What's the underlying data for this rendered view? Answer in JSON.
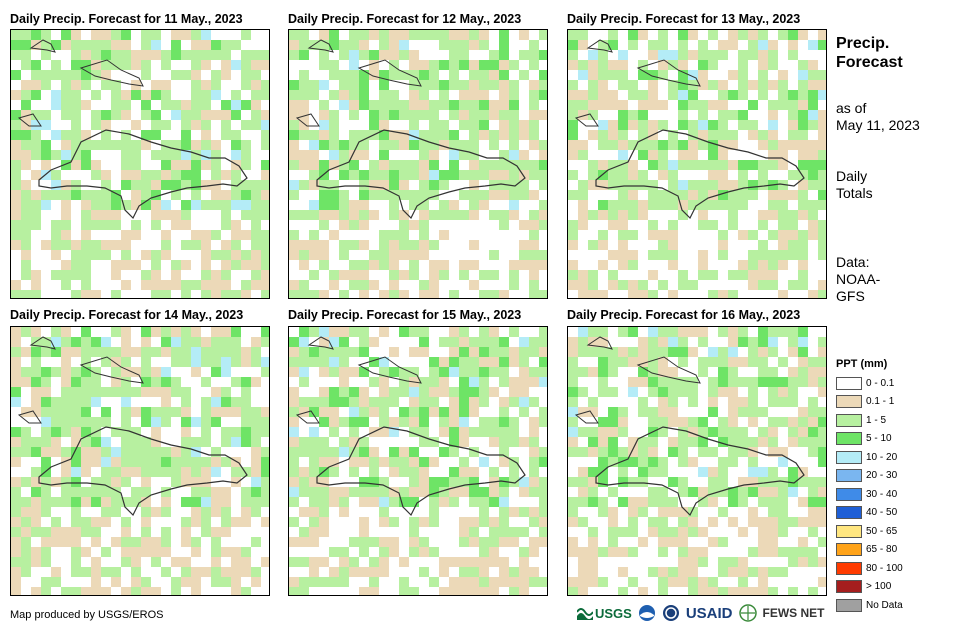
{
  "panels": [
    {
      "title": "Daily Precip. Forecast for 11 May., 2023"
    },
    {
      "title": "Daily Precip. Forecast for 12 May., 2023"
    },
    {
      "title": "Daily Precip. Forecast for 13 May., 2023"
    },
    {
      "title": "Daily Precip. Forecast for 14 May., 2023"
    },
    {
      "title": "Daily Precip. Forecast for 15 May., 2023"
    },
    {
      "title": "Daily Precip. Forecast for 16 May., 2023"
    }
  ],
  "sidebar": {
    "title_line1": "Precip.",
    "title_line2": "Forecast",
    "asof_line1": "as of",
    "asof_line2": "May 11, 2023",
    "totals_line1": "Daily",
    "totals_line2": "Totals",
    "data_line1": "Data:",
    "data_line2": "NOAA-",
    "data_line3": "GFS"
  },
  "legend": {
    "title": "PPT (mm)",
    "items": [
      {
        "label": "0 - 0.1",
        "color": "#ffffff"
      },
      {
        "label": "0.1 - 1",
        "color": "#ecd9b8"
      },
      {
        "label": "1 - 5",
        "color": "#b7f0a0"
      },
      {
        "label": "5 - 10",
        "color": "#6ee466"
      },
      {
        "label": "10 - 20",
        "color": "#b4ecf7"
      },
      {
        "label": "20 - 30",
        "color": "#7ab6f0"
      },
      {
        "label": "30 - 40",
        "color": "#3f8be8"
      },
      {
        "label": "40 - 50",
        "color": "#1f5fd6"
      },
      {
        "label": "50 - 65",
        "color": "#ffe680"
      },
      {
        "label": "65 - 80",
        "color": "#ffa319"
      },
      {
        "label": "80 - 100",
        "color": "#ff3b00"
      },
      {
        "label": "> 100",
        "color": "#a51e1e"
      },
      {
        "label": "No Data",
        "color": "#a0a0a0"
      }
    ]
  },
  "credit": "Map produced by USGS/EROS",
  "logos": {
    "usgs": "USGS",
    "usaid": "USAID",
    "fewsnet": "FEWS NET"
  }
}
